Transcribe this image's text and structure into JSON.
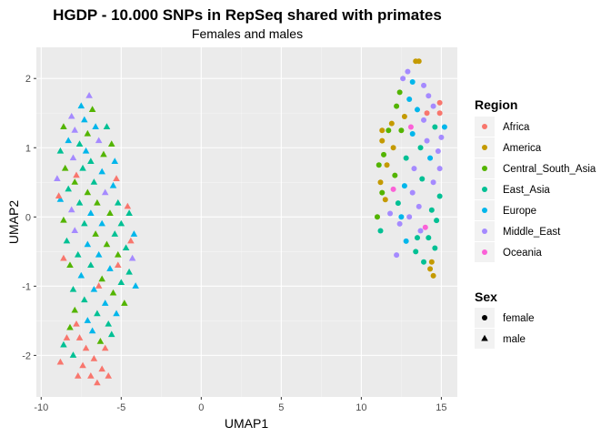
{
  "chart_data": {
    "type": "scatter",
    "title": "HGDP - 10.000 SNPs in RepSeq shared with primates",
    "subtitle": "Females and males",
    "xlabel": "UMAP1",
    "ylabel": "UMAP2",
    "xlim": [
      -10.3,
      16.0
    ],
    "ylim": [
      -2.6,
      2.45
    ],
    "x_ticks": [
      -10,
      -5,
      0,
      5,
      10,
      15
    ],
    "y_ticks": [
      -2,
      -1,
      0,
      1,
      2
    ],
    "x_tick_labels": [
      "-10",
      "-5",
      "0",
      "5",
      "10",
      "15"
    ],
    "y_tick_labels": [
      "-2",
      "-1",
      "0",
      "1",
      "2"
    ],
    "grid": true,
    "legend_position": "right",
    "legends": {
      "color": {
        "title": "Region",
        "entries": [
          {
            "label": "Africa",
            "color": "#F8766D"
          },
          {
            "label": "America",
            "color": "#C49A00"
          },
          {
            "label": "Central_South_Asia",
            "color": "#53B400"
          },
          {
            "label": "East_Asia",
            "color": "#00C094"
          },
          {
            "label": "Europe",
            "color": "#00B6EB"
          },
          {
            "label": "Middle_East",
            "color": "#A58AFF"
          },
          {
            "label": "Oceania",
            "color": "#FB61D7"
          }
        ]
      },
      "shape": {
        "title": "Sex",
        "entries": [
          {
            "label": "female",
            "shape": "circle"
          },
          {
            "label": "male",
            "shape": "triangle"
          }
        ]
      }
    },
    "series": [
      {
        "shape": "triangle",
        "region_order": [
          "Africa",
          "America",
          "Central_South_Asia",
          "East_Asia",
          "Europe",
          "Middle_East",
          "Oceania"
        ],
        "points": [
          [
            -7.0,
            1.75,
            5
          ],
          [
            -7.5,
            1.6,
            4
          ],
          [
            -6.8,
            1.55,
            2
          ],
          [
            -8.1,
            1.45,
            5
          ],
          [
            -7.3,
            1.4,
            4
          ],
          [
            -8.6,
            1.3,
            2
          ],
          [
            -7.9,
            1.25,
            5
          ],
          [
            -6.6,
            1.3,
            4
          ],
          [
            -5.9,
            1.3,
            3
          ],
          [
            -7.1,
            1.2,
            2
          ],
          [
            -8.3,
            1.1,
            4
          ],
          [
            -7.6,
            1.05,
            3
          ],
          [
            -6.4,
            1.1,
            5
          ],
          [
            -5.6,
            1.05,
            2
          ],
          [
            -8.8,
            0.95,
            3
          ],
          [
            -7.2,
            0.95,
            4
          ],
          [
            -6.1,
            0.9,
            2
          ],
          [
            -8.0,
            0.85,
            5
          ],
          [
            -6.9,
            0.8,
            3
          ],
          [
            -5.4,
            0.8,
            4
          ],
          [
            -8.5,
            0.7,
            2
          ],
          [
            -7.4,
            0.7,
            3
          ],
          [
            -6.2,
            0.65,
            4
          ],
          [
            -9.0,
            0.55,
            5
          ],
          [
            -7.9,
            0.5,
            2
          ],
          [
            -6.7,
            0.5,
            3
          ],
          [
            -5.5,
            0.45,
            4
          ],
          [
            -8.3,
            0.4,
            3
          ],
          [
            -7.1,
            0.35,
            2
          ],
          [
            -6.0,
            0.35,
            5
          ],
          [
            -8.8,
            0.25,
            4
          ],
          [
            -7.6,
            0.2,
            3
          ],
          [
            -6.5,
            0.2,
            2
          ],
          [
            -5.2,
            0.2,
            3
          ],
          [
            -8.1,
            0.1,
            5
          ],
          [
            -6.9,
            0.05,
            4
          ],
          [
            -5.7,
            0.05,
            2
          ],
          [
            -4.5,
            0.05,
            3
          ],
          [
            -8.6,
            -0.05,
            2
          ],
          [
            -7.3,
            -0.1,
            3
          ],
          [
            -6.2,
            -0.1,
            4
          ],
          [
            -5.0,
            -0.1,
            3
          ],
          [
            -7.9,
            -0.2,
            5
          ],
          [
            -6.6,
            -0.25,
            2
          ],
          [
            -5.4,
            -0.25,
            3
          ],
          [
            -4.2,
            -0.25,
            4
          ],
          [
            -8.4,
            -0.35,
            3
          ],
          [
            -7.1,
            -0.4,
            4
          ],
          [
            -5.9,
            -0.4,
            2
          ],
          [
            -4.7,
            -0.45,
            3
          ],
          [
            -7.7,
            -0.55,
            3
          ],
          [
            -6.4,
            -0.55,
            4
          ],
          [
            -5.2,
            -0.55,
            2
          ],
          [
            -4.3,
            -0.6,
            5
          ],
          [
            -8.2,
            -0.7,
            2
          ],
          [
            -6.9,
            -0.7,
            3
          ],
          [
            -5.7,
            -0.75,
            4
          ],
          [
            -4.5,
            -0.8,
            3
          ],
          [
            -7.5,
            -0.85,
            4
          ],
          [
            -6.2,
            -0.9,
            2
          ],
          [
            -5.0,
            -0.95,
            3
          ],
          [
            -4.1,
            -1.0,
            4
          ],
          [
            -8.0,
            -1.05,
            3
          ],
          [
            -6.7,
            -1.05,
            4
          ],
          [
            -5.5,
            -1.1,
            2
          ],
          [
            -7.3,
            -1.2,
            3
          ],
          [
            -6.0,
            -1.25,
            4
          ],
          [
            -4.8,
            -1.25,
            2
          ],
          [
            -7.9,
            -1.35,
            2
          ],
          [
            -6.5,
            -1.4,
            3
          ],
          [
            -5.3,
            -1.4,
            4
          ],
          [
            -7.1,
            -1.5,
            4
          ],
          [
            -5.8,
            -1.55,
            3
          ],
          [
            -8.2,
            -1.6,
            2
          ],
          [
            -6.8,
            -1.65,
            4
          ],
          [
            -5.6,
            -1.7,
            3
          ],
          [
            -7.6,
            -1.75,
            0
          ],
          [
            -6.3,
            -1.8,
            2
          ],
          [
            -8.6,
            -1.85,
            3
          ],
          [
            -7.2,
            -1.9,
            0
          ],
          [
            -6.0,
            -1.9,
            0
          ],
          [
            -8.0,
            -2.0,
            3
          ],
          [
            -6.7,
            -2.05,
            0
          ],
          [
            -7.4,
            -2.15,
            0
          ],
          [
            -6.2,
            -2.2,
            0
          ],
          [
            -6.9,
            -2.3,
            0
          ],
          [
            -5.8,
            -2.3,
            0
          ],
          [
            -6.5,
            -2.4,
            0
          ],
          [
            -7.7,
            -2.3,
            0
          ],
          [
            -8.8,
            -2.1,
            0
          ],
          [
            -8.4,
            -1.75,
            0
          ],
          [
            -7.8,
            -1.55,
            0
          ],
          [
            -6.4,
            -1.0,
            0
          ],
          [
            -5.2,
            -0.7,
            0
          ],
          [
            -4.4,
            -0.35,
            0
          ],
          [
            -4.6,
            0.15,
            0
          ],
          [
            -5.3,
            0.55,
            0
          ],
          [
            -7.8,
            0.6,
            0
          ],
          [
            -8.9,
            0.3,
            0
          ],
          [
            -8.6,
            -0.6,
            0
          ]
        ]
      },
      {
        "shape": "circle",
        "region_order": [
          "Africa",
          "America",
          "Central_South_Asia",
          "East_Asia",
          "Europe",
          "Middle_East",
          "Oceania"
        ],
        "points": [
          [
            13.4,
            2.25,
            1
          ],
          [
            13.6,
            2.25,
            1
          ],
          [
            12.9,
            2.1,
            5
          ],
          [
            12.6,
            2.0,
            5
          ],
          [
            13.2,
            1.95,
            4
          ],
          [
            13.9,
            1.9,
            5
          ],
          [
            12.4,
            1.8,
            2
          ],
          [
            14.2,
            1.75,
            5
          ],
          [
            13.0,
            1.7,
            4
          ],
          [
            14.5,
            1.6,
            5
          ],
          [
            12.2,
            1.6,
            2
          ],
          [
            13.5,
            1.55,
            4
          ],
          [
            14.9,
            1.5,
            0
          ],
          [
            12.7,
            1.45,
            1
          ],
          [
            13.9,
            1.4,
            5
          ],
          [
            11.9,
            1.35,
            1
          ],
          [
            14.6,
            1.3,
            3
          ],
          [
            12.5,
            1.25,
            2
          ],
          [
            13.2,
            1.2,
            4
          ],
          [
            15.0,
            1.15,
            5
          ],
          [
            11.3,
            1.1,
            1
          ],
          [
            14.1,
            1.1,
            5
          ],
          [
            12.0,
            1.0,
            1
          ],
          [
            13.7,
            1.0,
            3
          ],
          [
            14.8,
            0.95,
            5
          ],
          [
            11.4,
            0.9,
            2
          ],
          [
            12.8,
            0.85,
            3
          ],
          [
            14.3,
            0.85,
            4
          ],
          [
            11.6,
            0.75,
            1
          ],
          [
            13.3,
            0.7,
            5
          ],
          [
            14.9,
            0.7,
            5
          ],
          [
            12.1,
            0.6,
            2
          ],
          [
            13.8,
            0.55,
            3
          ],
          [
            11.2,
            0.5,
            1
          ],
          [
            14.5,
            0.5,
            5
          ],
          [
            12.7,
            0.45,
            4
          ],
          [
            13.2,
            0.35,
            5
          ],
          [
            14.9,
            0.3,
            3
          ],
          [
            11.5,
            0.25,
            1
          ],
          [
            12.3,
            0.2,
            3
          ],
          [
            13.6,
            0.15,
            5
          ],
          [
            14.4,
            0.1,
            3
          ],
          [
            11.8,
            0.05,
            5
          ],
          [
            13.0,
            0.0,
            5
          ],
          [
            14.7,
            -0.05,
            3
          ],
          [
            12.4,
            -0.1,
            5
          ],
          [
            13.7,
            -0.2,
            5
          ],
          [
            11.2,
            -0.2,
            3
          ],
          [
            14.2,
            -0.3,
            3
          ],
          [
            12.8,
            -0.35,
            4
          ],
          [
            13.4,
            -0.5,
            3
          ],
          [
            14.6,
            -0.45,
            3
          ],
          [
            12.2,
            -0.55,
            5
          ],
          [
            13.9,
            -0.65,
            3
          ],
          [
            14.3,
            -0.75,
            1
          ],
          [
            14.5,
            -0.85,
            1
          ],
          [
            14.4,
            -0.65,
            1
          ],
          [
            13.5,
            -0.3,
            3
          ],
          [
            14.0,
            -0.15,
            6
          ],
          [
            12.0,
            0.4,
            6
          ],
          [
            13.1,
            1.3,
            6
          ],
          [
            11.7,
            1.25,
            2
          ],
          [
            11.3,
            1.25,
            1
          ],
          [
            11.1,
            0.75,
            2
          ],
          [
            11.3,
            0.35,
            2
          ],
          [
            11.0,
            0.0,
            2
          ],
          [
            14.9,
            1.65,
            0
          ],
          [
            15.2,
            1.3,
            4
          ],
          [
            14.1,
            1.5,
            0
          ],
          [
            12.5,
            0.0,
            4
          ]
        ]
      }
    ]
  }
}
